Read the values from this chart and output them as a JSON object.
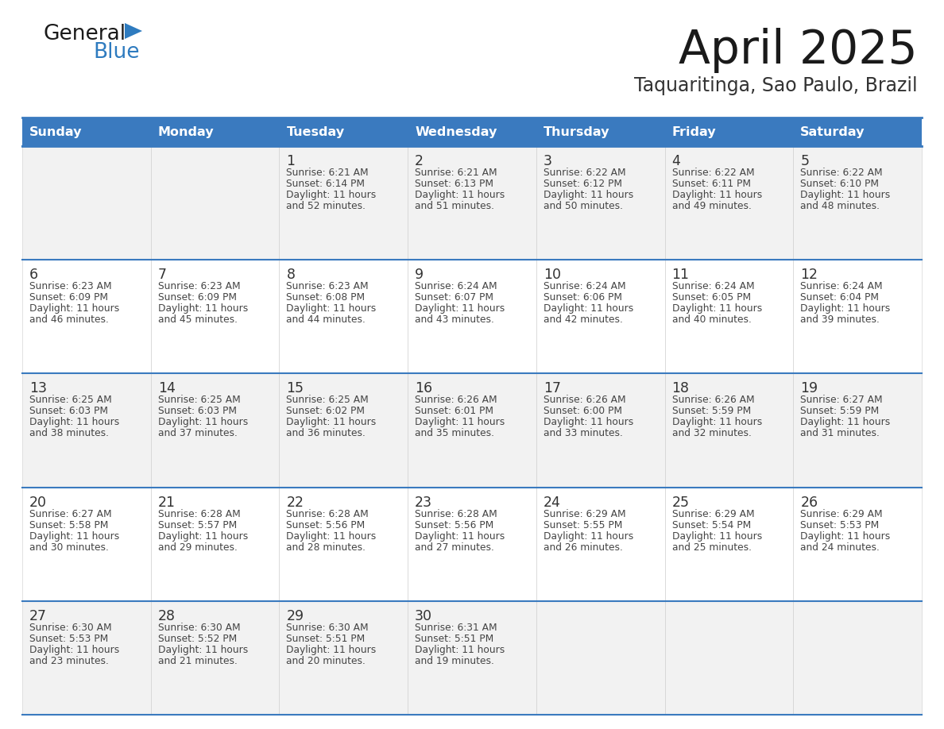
{
  "title": "April 2025",
  "subtitle": "Taquaritinga, Sao Paulo, Brazil",
  "header_color": "#3a7abf",
  "header_text_color": "#ffffff",
  "row_bg_odd": "#f2f2f2",
  "row_bg_even": "#ffffff",
  "separator_color": "#3a7abf",
  "text_color": "#444444",
  "day_headers": [
    "Sunday",
    "Monday",
    "Tuesday",
    "Wednesday",
    "Thursday",
    "Friday",
    "Saturday"
  ],
  "logo_general_color": "#222222",
  "logo_blue_color": "#2e7bbf",
  "logo_triangle_color": "#2e7bbf",
  "weeks": [
    [
      {
        "day": "",
        "sunrise": "",
        "sunset": "",
        "daylight": ""
      },
      {
        "day": "",
        "sunrise": "",
        "sunset": "",
        "daylight": ""
      },
      {
        "day": "1",
        "sunrise": "Sunrise: 6:21 AM",
        "sunset": "Sunset: 6:14 PM",
        "daylight": "Daylight: 11 hours\nand 52 minutes."
      },
      {
        "day": "2",
        "sunrise": "Sunrise: 6:21 AM",
        "sunset": "Sunset: 6:13 PM",
        "daylight": "Daylight: 11 hours\nand 51 minutes."
      },
      {
        "day": "3",
        "sunrise": "Sunrise: 6:22 AM",
        "sunset": "Sunset: 6:12 PM",
        "daylight": "Daylight: 11 hours\nand 50 minutes."
      },
      {
        "day": "4",
        "sunrise": "Sunrise: 6:22 AM",
        "sunset": "Sunset: 6:11 PM",
        "daylight": "Daylight: 11 hours\nand 49 minutes."
      },
      {
        "day": "5",
        "sunrise": "Sunrise: 6:22 AM",
        "sunset": "Sunset: 6:10 PM",
        "daylight": "Daylight: 11 hours\nand 48 minutes."
      }
    ],
    [
      {
        "day": "6",
        "sunrise": "Sunrise: 6:23 AM",
        "sunset": "Sunset: 6:09 PM",
        "daylight": "Daylight: 11 hours\nand 46 minutes."
      },
      {
        "day": "7",
        "sunrise": "Sunrise: 6:23 AM",
        "sunset": "Sunset: 6:09 PM",
        "daylight": "Daylight: 11 hours\nand 45 minutes."
      },
      {
        "day": "8",
        "sunrise": "Sunrise: 6:23 AM",
        "sunset": "Sunset: 6:08 PM",
        "daylight": "Daylight: 11 hours\nand 44 minutes."
      },
      {
        "day": "9",
        "sunrise": "Sunrise: 6:24 AM",
        "sunset": "Sunset: 6:07 PM",
        "daylight": "Daylight: 11 hours\nand 43 minutes."
      },
      {
        "day": "10",
        "sunrise": "Sunrise: 6:24 AM",
        "sunset": "Sunset: 6:06 PM",
        "daylight": "Daylight: 11 hours\nand 42 minutes."
      },
      {
        "day": "11",
        "sunrise": "Sunrise: 6:24 AM",
        "sunset": "Sunset: 6:05 PM",
        "daylight": "Daylight: 11 hours\nand 40 minutes."
      },
      {
        "day": "12",
        "sunrise": "Sunrise: 6:24 AM",
        "sunset": "Sunset: 6:04 PM",
        "daylight": "Daylight: 11 hours\nand 39 minutes."
      }
    ],
    [
      {
        "day": "13",
        "sunrise": "Sunrise: 6:25 AM",
        "sunset": "Sunset: 6:03 PM",
        "daylight": "Daylight: 11 hours\nand 38 minutes."
      },
      {
        "day": "14",
        "sunrise": "Sunrise: 6:25 AM",
        "sunset": "Sunset: 6:03 PM",
        "daylight": "Daylight: 11 hours\nand 37 minutes."
      },
      {
        "day": "15",
        "sunrise": "Sunrise: 6:25 AM",
        "sunset": "Sunset: 6:02 PM",
        "daylight": "Daylight: 11 hours\nand 36 minutes."
      },
      {
        "day": "16",
        "sunrise": "Sunrise: 6:26 AM",
        "sunset": "Sunset: 6:01 PM",
        "daylight": "Daylight: 11 hours\nand 35 minutes."
      },
      {
        "day": "17",
        "sunrise": "Sunrise: 6:26 AM",
        "sunset": "Sunset: 6:00 PM",
        "daylight": "Daylight: 11 hours\nand 33 minutes."
      },
      {
        "day": "18",
        "sunrise": "Sunrise: 6:26 AM",
        "sunset": "Sunset: 5:59 PM",
        "daylight": "Daylight: 11 hours\nand 32 minutes."
      },
      {
        "day": "19",
        "sunrise": "Sunrise: 6:27 AM",
        "sunset": "Sunset: 5:59 PM",
        "daylight": "Daylight: 11 hours\nand 31 minutes."
      }
    ],
    [
      {
        "day": "20",
        "sunrise": "Sunrise: 6:27 AM",
        "sunset": "Sunset: 5:58 PM",
        "daylight": "Daylight: 11 hours\nand 30 minutes."
      },
      {
        "day": "21",
        "sunrise": "Sunrise: 6:28 AM",
        "sunset": "Sunset: 5:57 PM",
        "daylight": "Daylight: 11 hours\nand 29 minutes."
      },
      {
        "day": "22",
        "sunrise": "Sunrise: 6:28 AM",
        "sunset": "Sunset: 5:56 PM",
        "daylight": "Daylight: 11 hours\nand 28 minutes."
      },
      {
        "day": "23",
        "sunrise": "Sunrise: 6:28 AM",
        "sunset": "Sunset: 5:56 PM",
        "daylight": "Daylight: 11 hours\nand 27 minutes."
      },
      {
        "day": "24",
        "sunrise": "Sunrise: 6:29 AM",
        "sunset": "Sunset: 5:55 PM",
        "daylight": "Daylight: 11 hours\nand 26 minutes."
      },
      {
        "day": "25",
        "sunrise": "Sunrise: 6:29 AM",
        "sunset": "Sunset: 5:54 PM",
        "daylight": "Daylight: 11 hours\nand 25 minutes."
      },
      {
        "day": "26",
        "sunrise": "Sunrise: 6:29 AM",
        "sunset": "Sunset: 5:53 PM",
        "daylight": "Daylight: 11 hours\nand 24 minutes."
      }
    ],
    [
      {
        "day": "27",
        "sunrise": "Sunrise: 6:30 AM",
        "sunset": "Sunset: 5:53 PM",
        "daylight": "Daylight: 11 hours\nand 23 minutes."
      },
      {
        "day": "28",
        "sunrise": "Sunrise: 6:30 AM",
        "sunset": "Sunset: 5:52 PM",
        "daylight": "Daylight: 11 hours\nand 21 minutes."
      },
      {
        "day": "29",
        "sunrise": "Sunrise: 6:30 AM",
        "sunset": "Sunset: 5:51 PM",
        "daylight": "Daylight: 11 hours\nand 20 minutes."
      },
      {
        "day": "30",
        "sunrise": "Sunrise: 6:31 AM",
        "sunset": "Sunset: 5:51 PM",
        "daylight": "Daylight: 11 hours\nand 19 minutes."
      },
      {
        "day": "",
        "sunrise": "",
        "sunset": "",
        "daylight": ""
      },
      {
        "day": "",
        "sunrise": "",
        "sunset": "",
        "daylight": ""
      },
      {
        "day": "",
        "sunrise": "",
        "sunset": "",
        "daylight": ""
      }
    ]
  ]
}
